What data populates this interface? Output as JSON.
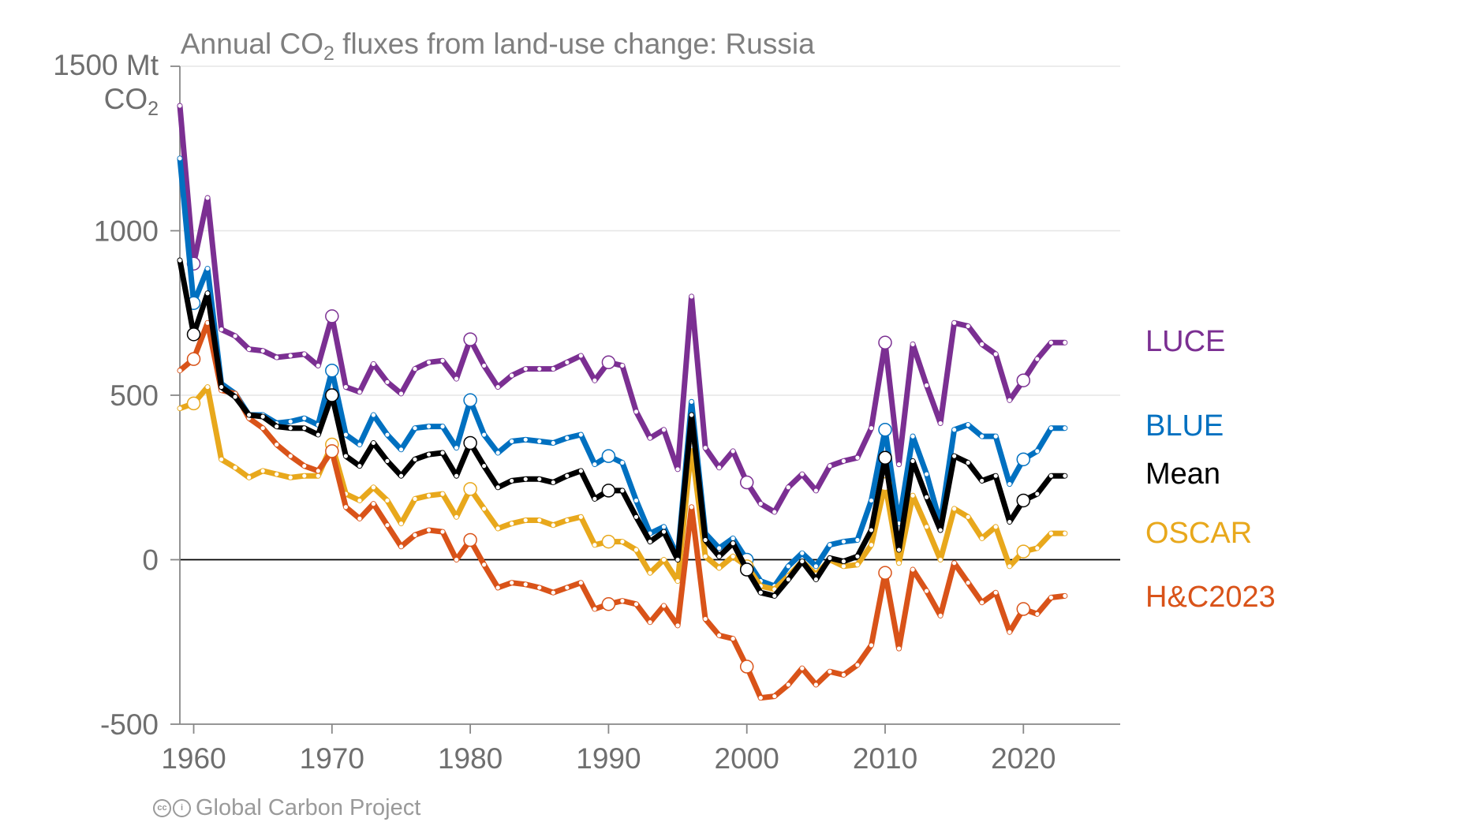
{
  "chart_data": {
    "type": "line",
    "title_parts": {
      "pre": "Annual CO",
      "sub": "2",
      "post": " fluxes from land-use change: Russia"
    },
    "ylabel_parts": {
      "line1": "1500 Mt",
      "line2": "CO",
      "line2_sub": "2"
    },
    "ylim": [
      -500,
      1500
    ],
    "xlim": [
      1959,
      2027
    ],
    "yticks": [
      -500,
      0,
      500,
      1000
    ],
    "xticks": [
      1960,
      1970,
      1980,
      1990,
      2000,
      2010,
      2020
    ],
    "grid": true,
    "legend_placement": "right",
    "credit": "Global Carbon Project",
    "x": [
      1959,
      1960,
      1961,
      1962,
      1963,
      1964,
      1965,
      1966,
      1967,
      1968,
      1969,
      1970,
      1971,
      1972,
      1973,
      1974,
      1975,
      1976,
      1977,
      1978,
      1979,
      1980,
      1981,
      1982,
      1983,
      1984,
      1985,
      1986,
      1987,
      1988,
      1989,
      1990,
      1991,
      1992,
      1993,
      1994,
      1995,
      1996,
      1997,
      1998,
      1999,
      2000,
      2001,
      2002,
      2003,
      2004,
      2005,
      2006,
      2007,
      2008,
      2009,
      2010,
      2011,
      2012,
      2013,
      2014,
      2015,
      2016,
      2017,
      2018,
      2019,
      2020,
      2021,
      2022,
      2023
    ],
    "series": [
      {
        "name": "LUCE",
        "color": "#7b2f92",
        "circles": [
          1960,
          1970,
          1980,
          1990,
          2000,
          2010,
          2020
        ],
        "values": [
          1380,
          900,
          1100,
          700,
          680,
          640,
          635,
          615,
          620,
          625,
          590,
          740,
          525,
          510,
          595,
          540,
          505,
          580,
          600,
          605,
          550,
          670,
          590,
          525,
          560,
          580,
          580,
          580,
          600,
          620,
          545,
          600,
          590,
          450,
          370,
          395,
          275,
          800,
          340,
          280,
          330,
          235,
          170,
          145,
          220,
          260,
          210,
          285,
          300,
          310,
          400,
          660,
          290,
          655,
          530,
          415,
          720,
          710,
          655,
          625,
          485,
          545,
          610,
          660,
          660
        ]
      },
      {
        "name": "BLUE",
        "color": "#0070c0",
        "circles": [
          1960,
          1970,
          1980,
          1990,
          2000,
          2010,
          2020
        ],
        "values": [
          1220,
          780,
          885,
          535,
          505,
          440,
          440,
          415,
          420,
          430,
          410,
          575,
          380,
          350,
          440,
          380,
          335,
          400,
          405,
          405,
          340,
          485,
          380,
          325,
          360,
          365,
          360,
          355,
          370,
          380,
          290,
          315,
          295,
          180,
          80,
          100,
          10,
          480,
          80,
          35,
          65,
          0,
          -65,
          -80,
          -20,
          20,
          -20,
          45,
          55,
          60,
          180,
          395,
          110,
          375,
          260,
          110,
          395,
          410,
          375,
          375,
          230,
          305,
          330,
          400,
          400
        ]
      },
      {
        "name": "Mean",
        "color": "#000000",
        "circles": [
          1960,
          1970,
          1980,
          1990,
          2000,
          2010,
          2020
        ],
        "values": [
          910,
          685,
          810,
          525,
          495,
          440,
          435,
          405,
          400,
          400,
          380,
          500,
          315,
          285,
          355,
          300,
          255,
          305,
          320,
          325,
          255,
          355,
          285,
          220,
          240,
          245,
          245,
          235,
          255,
          270,
          185,
          210,
          210,
          130,
          55,
          85,
          0,
          440,
          60,
          10,
          50,
          -30,
          -100,
          -110,
          -60,
          -5,
          -60,
          5,
          -5,
          10,
          90,
          310,
          30,
          300,
          190,
          90,
          315,
          295,
          240,
          255,
          115,
          180,
          200,
          255,
          255
        ]
      },
      {
        "name": "OSCAR",
        "color": "#e8a81c",
        "circles": [
          1960,
          1970,
          1980,
          1990,
          2000,
          2010,
          2020
        ],
        "values": [
          460,
          475,
          525,
          305,
          280,
          250,
          270,
          260,
          250,
          255,
          255,
          350,
          200,
          180,
          220,
          180,
          110,
          185,
          195,
          200,
          130,
          215,
          155,
          95,
          110,
          120,
          120,
          105,
          120,
          130,
          45,
          55,
          55,
          30,
          -40,
          0,
          -65,
          345,
          10,
          -25,
          10,
          -20,
          -80,
          -90,
          -50,
          -5,
          -45,
          0,
          -20,
          -15,
          45,
          230,
          -10,
          195,
          100,
          0,
          155,
          130,
          65,
          100,
          -20,
          25,
          35,
          80,
          80
        ]
      },
      {
        "name": "H&C2023",
        "color": "#d95319",
        "circles": [
          1960,
          1970,
          1980,
          1990,
          2000,
          2010,
          2020
        ],
        "values": [
          575,
          610,
          720,
          515,
          505,
          430,
          400,
          350,
          315,
          285,
          270,
          330,
          160,
          125,
          170,
          105,
          40,
          75,
          90,
          85,
          0,
          60,
          -15,
          -85,
          -70,
          -75,
          -85,
          -100,
          -85,
          -70,
          -150,
          -135,
          -125,
          -135,
          -190,
          -140,
          -200,
          160,
          -180,
          -230,
          -240,
          -325,
          -420,
          -415,
          -380,
          -330,
          -380,
          -340,
          -350,
          -320,
          -260,
          -40,
          -270,
          -30,
          -95,
          -170,
          -10,
          -70,
          -130,
          -100,
          -220,
          -150,
          -165,
          -115,
          -110
        ]
      }
    ]
  }
}
